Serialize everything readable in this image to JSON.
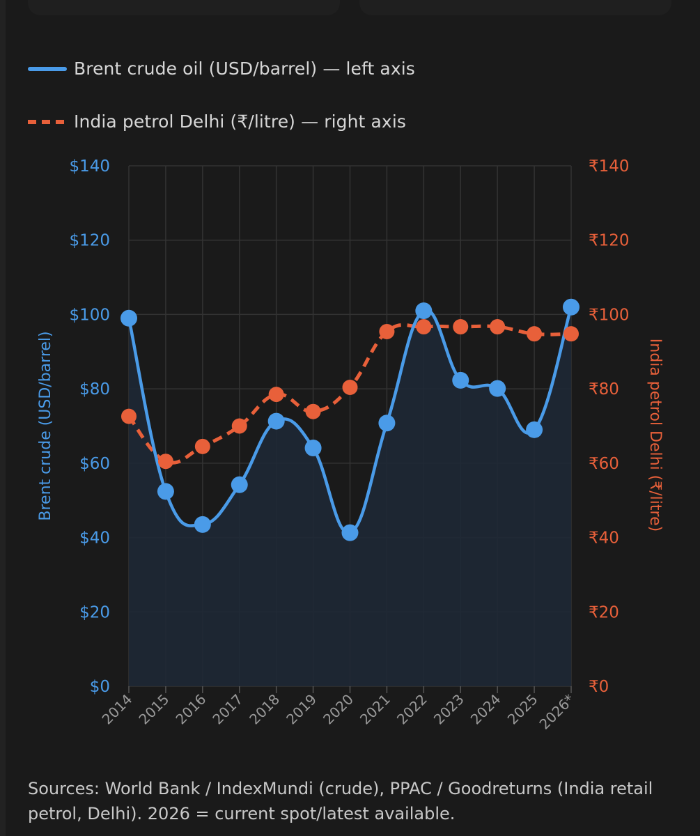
{
  "legend": {
    "brent": "Brent crude oil (USD/barrel) — left axis",
    "petrol": "India petrol Delhi (₹/litre) — right axis"
  },
  "colors": {
    "brent": "#4a9be8",
    "petrol": "#e8603a",
    "grid": "#333333",
    "area": "#1e2835"
  },
  "chart_data": {
    "type": "line",
    "x": [
      "2014",
      "2015",
      "2016",
      "2017",
      "2018",
      "2019",
      "2020",
      "2021",
      "2022",
      "2023",
      "2024",
      "2025",
      "2026*"
    ],
    "series": [
      {
        "name": "Brent crude oil (USD/barrel) — left axis",
        "axis": "left",
        "style": "solid, smoothed, filled area",
        "values": [
          99,
          52.4,
          43.5,
          54.2,
          71.3,
          64.1,
          41.3,
          70.8,
          101,
          82.3,
          80.1,
          69,
          102
        ]
      },
      {
        "name": "India petrol Delhi (₹/litre) — right axis",
        "axis": "right",
        "style": "dashed",
        "values": [
          72.6,
          60.5,
          64.5,
          70,
          78.5,
          73.9,
          80.4,
          95.4,
          96.7,
          96.7,
          96.7,
          94.8,
          94.8
        ]
      }
    ],
    "y_left": {
      "label": "Brent crude (USD/barrel)",
      "range": [
        0,
        140
      ],
      "ticks": [
        "$0",
        "$20",
        "$40",
        "$60",
        "$80",
        "$100",
        "$120",
        "$140"
      ]
    },
    "y_right": {
      "label": "India petrol Delhi (₹/litre)",
      "range": [
        0,
        140
      ],
      "ticks": [
        "₹0",
        "₹20",
        "₹40",
        "₹60",
        "₹80",
        "₹100",
        "₹120",
        "₹140"
      ]
    },
    "grid": true,
    "legend_position": "top-left"
  },
  "source_text": "Sources: World Bank / IndexMundi (crude), PPAC / Goodreturns (India retail petrol, Delhi). 2026 = current spot/latest available."
}
